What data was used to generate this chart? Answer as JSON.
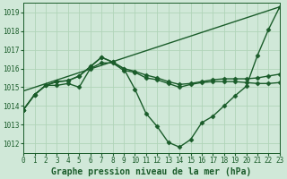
{
  "title": "Graphe pression niveau de la mer (hPa)",
  "background_color": "#d0e8d8",
  "grid_color": "#b0d4b8",
  "line_color": "#1a5c2a",
  "ylim": [
    1011.5,
    1019.5
  ],
  "xlim": [
    0,
    23
  ],
  "yticks": [
    1012,
    1013,
    1014,
    1015,
    1016,
    1017,
    1018,
    1019
  ],
  "xticks": [
    0,
    1,
    2,
    3,
    4,
    5,
    6,
    7,
    8,
    9,
    10,
    11,
    12,
    13,
    14,
    15,
    16,
    17,
    18,
    19,
    20,
    21,
    22,
    23
  ],
  "series_with_markers": [
    [
      1013.8,
      1014.6,
      1015.1,
      1015.1,
      1015.2,
      1015.0,
      1016.0,
      1016.3,
      1016.3,
      1015.9,
      1015.8,
      1015.5,
      1015.4,
      1015.2,
      1015.0,
      1015.15,
      1015.25,
      1015.3,
      1015.3,
      1015.3,
      1015.25,
      1015.2,
      1015.2,
      1015.25
    ],
    [
      1013.8,
      1014.6,
      1015.1,
      1015.3,
      1015.35,
      1015.6,
      1016.1,
      1016.6,
      1016.35,
      1016.0,
      1015.85,
      1015.65,
      1015.5,
      1015.3,
      1015.15,
      1015.2,
      1015.3,
      1015.4,
      1015.45,
      1015.45,
      1015.45,
      1015.5,
      1015.6,
      1015.7
    ],
    [
      1013.8,
      1014.6,
      1015.1,
      1015.3,
      1015.35,
      1015.6,
      1016.1,
      1016.6,
      1016.35,
      1016.0,
      1014.9,
      1013.6,
      1012.9,
      1012.05,
      1011.8,
      1012.2,
      1013.1,
      1013.45,
      1014.0,
      1014.55,
      1015.05,
      1016.7,
      1018.1,
      1019.3
    ]
  ],
  "series_no_markers": [
    [
      1014.8,
      1019.3
    ]
  ],
  "series_no_markers_x": [
    [
      0,
      23
    ]
  ],
  "marker": "D",
  "marker_size": 2.5,
  "linewidth": 1.0,
  "title_fontsize": 7,
  "tick_fontsize": 5.5
}
